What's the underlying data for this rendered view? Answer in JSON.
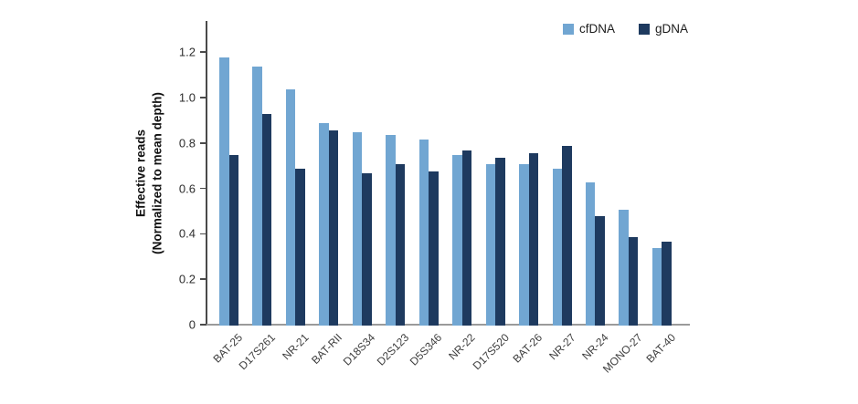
{
  "figure": {
    "y_axis_title_line1": "Effective reads",
    "y_axis_title_line2": "(Normalized to mean depth)"
  },
  "chart_data": {
    "type": "bar",
    "title": "",
    "xlabel": "",
    "ylabel": "Effective reads (Normalized to mean depth)",
    "ylim": [
      0,
      1.34
    ],
    "grid": false,
    "legend_position": "top-right",
    "ytick_labels": [
      "0",
      "0.2",
      "0.4",
      "0.6",
      "0.8",
      "1.0",
      "1.2"
    ],
    "ytick_values": [
      0,
      0.2,
      0.4,
      0.6,
      0.8,
      1.0,
      1.2
    ],
    "categories": [
      "BAT-25",
      "D17S261",
      "NR-21",
      "BAT-RII",
      "D18S34",
      "D2S123",
      "D5S346",
      "NR-22",
      "D17S520",
      "BAT-26",
      "NR-27",
      "NR-24",
      "MONO-27",
      "BAT-40"
    ],
    "series": [
      {
        "name": "cfDNA",
        "color": "#71a6d2",
        "values": [
          1.18,
          1.14,
          1.04,
          0.89,
          0.85,
          0.84,
          0.82,
          0.75,
          0.71,
          0.71,
          0.69,
          0.63,
          0.51,
          0.34
        ]
      },
      {
        "name": "gDNA",
        "color": "#1e3a5f",
        "values": [
          0.75,
          0.93,
          0.69,
          0.86,
          0.67,
          0.71,
          0.68,
          0.77,
          0.74,
          0.76,
          0.79,
          0.48,
          0.39,
          0.37
        ]
      }
    ]
  }
}
